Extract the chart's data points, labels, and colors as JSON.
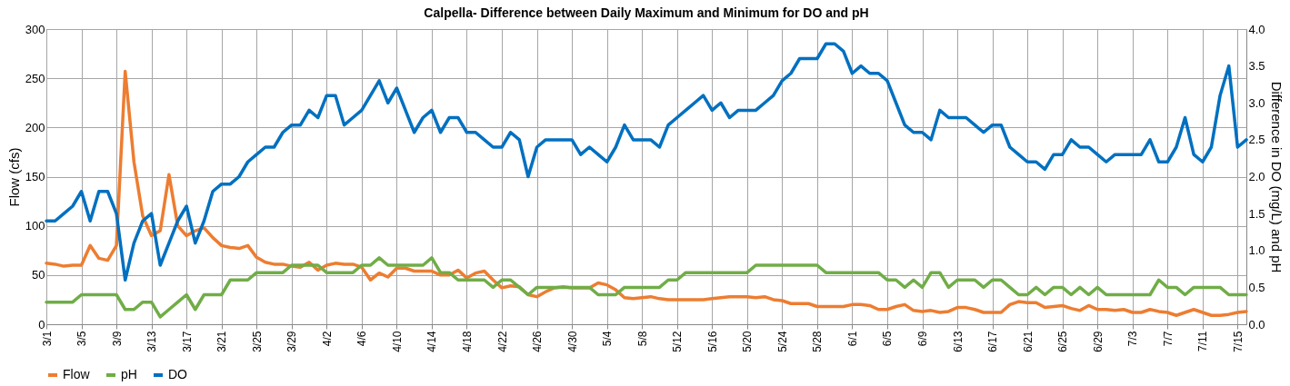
{
  "chart_data": {
    "type": "line",
    "title": "Calpella- Difference between Daily Maximum and Minimum for DO and pH",
    "ylabel": "Flow (cfs)",
    "y2label": "Difference in DO (mg/L) and pH",
    "categories": [
      "3/1",
      null,
      null,
      null,
      "3/5",
      null,
      null,
      null,
      "3/9",
      null,
      null,
      null,
      "3/13",
      null,
      null,
      null,
      "3/17",
      null,
      null,
      null,
      "3/21",
      null,
      null,
      null,
      "3/25",
      null,
      null,
      null,
      "3/29",
      null,
      null,
      null,
      "4/2",
      null,
      null,
      null,
      "4/6",
      null,
      null,
      null,
      "4/10",
      null,
      null,
      null,
      "4/14",
      null,
      null,
      null,
      "4/18",
      null,
      null,
      null,
      "4/22",
      null,
      null,
      null,
      "4/26",
      null,
      null,
      null,
      "4/30",
      null,
      null,
      null,
      "5/4",
      null,
      null,
      null,
      "5/8",
      null,
      null,
      null,
      "5/12",
      null,
      null,
      null,
      "5/16",
      null,
      null,
      null,
      "5/20",
      null,
      null,
      null,
      "5/24",
      null,
      null,
      null,
      "5/28",
      null,
      null,
      null,
      "6/1",
      null,
      null,
      null,
      "6/5",
      null,
      null,
      null,
      "6/9",
      null,
      null,
      null,
      "6/13",
      null,
      null,
      null,
      "6/17",
      null,
      null,
      null,
      "6/21",
      null,
      null,
      null,
      "6/25",
      null,
      null,
      null,
      "6/29",
      null,
      null,
      null,
      "7/3",
      null,
      null,
      null,
      "7/7",
      null,
      null,
      null,
      "7/11",
      null,
      null,
      null,
      "7/15",
      null
    ],
    "series": [
      {
        "name": "Flow",
        "color": "#ed7d31",
        "values": [
          62,
          61,
          59,
          60,
          60,
          80,
          67,
          65,
          80,
          257,
          165,
          110,
          90,
          95,
          152,
          100,
          90,
          95,
          98,
          88,
          80,
          78,
          77,
          80,
          68,
          63,
          61,
          61,
          59,
          58,
          63,
          55,
          60,
          62,
          61,
          61,
          58,
          45,
          52,
          48,
          57,
          57,
          54,
          54,
          54,
          50,
          50,
          55,
          47,
          52,
          54,
          45,
          37,
          39,
          38,
          30,
          28,
          33,
          37,
          38,
          37,
          37,
          37,
          42,
          40,
          35,
          27,
          26,
          27,
          28,
          26,
          25,
          25,
          25,
          25,
          25,
          26,
          27,
          28,
          28,
          28,
          27,
          28,
          25,
          24,
          21,
          21,
          21,
          18,
          18,
          18,
          18,
          20,
          20,
          19,
          15,
          15,
          18,
          20,
          14,
          13,
          14,
          12,
          13,
          17,
          17,
          15,
          12,
          12,
          12,
          20,
          23,
          22,
          22,
          17,
          18,
          19,
          16,
          14,
          19,
          15,
          15,
          14,
          15,
          12,
          12,
          15,
          13,
          12,
          9,
          12,
          15,
          12,
          9,
          9,
          10,
          12,
          13
        ]
      },
      {
        "name": "pH",
        "color": "#70ad47",
        "axis": "y2",
        "values": [
          0.3,
          0.3,
          0.3,
          0.3,
          0.4,
          0.4,
          0.4,
          0.4,
          0.4,
          0.2,
          0.2,
          0.3,
          0.3,
          0.1,
          0.2,
          0.3,
          0.4,
          0.2,
          0.4,
          0.4,
          0.4,
          0.6,
          0.6,
          0.6,
          0.7,
          0.7,
          0.7,
          0.7,
          0.8,
          0.8,
          0.8,
          0.8,
          0.7,
          0.7,
          0.7,
          0.7,
          0.8,
          0.8,
          0.9,
          0.8,
          0.8,
          0.8,
          0.8,
          0.8,
          0.9,
          0.7,
          0.7,
          0.6,
          0.6,
          0.6,
          0.6,
          0.5,
          0.6,
          0.6,
          0.5,
          0.4,
          0.5,
          0.5,
          0.5,
          0.5,
          0.5,
          0.5,
          0.5,
          0.4,
          0.4,
          0.4,
          0.5,
          0.5,
          0.5,
          0.5,
          0.5,
          0.6,
          0.6,
          0.7,
          0.7,
          0.7,
          0.7,
          0.7,
          0.7,
          0.7,
          0.7,
          0.8,
          0.8,
          0.8,
          0.8,
          0.8,
          0.8,
          0.8,
          0.8,
          0.7,
          0.7,
          0.7,
          0.7,
          0.7,
          0.7,
          0.7,
          0.6,
          0.6,
          0.5,
          0.6,
          0.5,
          0.7,
          0.7,
          0.5,
          0.6,
          0.6,
          0.6,
          0.5,
          0.6,
          0.6,
          0.5,
          0.4,
          0.4,
          0.5,
          0.4,
          0.5,
          0.5,
          0.4,
          0.5,
          0.4,
          0.5,
          0.4,
          0.4,
          0.4,
          0.4,
          0.4,
          0.4,
          0.6,
          0.5,
          0.5,
          0.4,
          0.5,
          0.5,
          0.5,
          0.5,
          0.4,
          0.4,
          0.4
        ]
      },
      {
        "name": "DO",
        "color": "#0070c0",
        "axis": "y2",
        "values": [
          1.4,
          1.4,
          1.5,
          1.6,
          1.8,
          1.4,
          1.8,
          1.8,
          1.5,
          0.6,
          1.1,
          1.4,
          1.5,
          0.8,
          1.1,
          1.4,
          1.6,
          1.1,
          1.4,
          1.8,
          1.9,
          1.9,
          2.0,
          2.2,
          2.3,
          2.4,
          2.4,
          2.6,
          2.7,
          2.7,
          2.9,
          2.8,
          3.1,
          3.1,
          2.7,
          2.8,
          2.9,
          3.1,
          3.3,
          3.0,
          3.2,
          2.9,
          2.6,
          2.8,
          2.9,
          2.6,
          2.8,
          2.8,
          2.6,
          2.6,
          2.5,
          2.4,
          2.4,
          2.6,
          2.5,
          2.0,
          2.4,
          2.5,
          2.5,
          2.5,
          2.5,
          2.3,
          2.4,
          2.3,
          2.2,
          2.4,
          2.7,
          2.5,
          2.5,
          2.5,
          2.4,
          2.7,
          2.8,
          2.9,
          3.0,
          3.1,
          2.9,
          3.0,
          2.8,
          2.9,
          2.9,
          2.9,
          3.0,
          3.1,
          3.3,
          3.4,
          3.6,
          3.6,
          3.6,
          3.8,
          3.8,
          3.7,
          3.4,
          3.5,
          3.4,
          3.4,
          3.3,
          3.0,
          2.7,
          2.6,
          2.6,
          2.5,
          2.9,
          2.8,
          2.8,
          2.8,
          2.7,
          2.6,
          2.7,
          2.7,
          2.4,
          2.3,
          2.2,
          2.2,
          2.1,
          2.3,
          2.3,
          2.5,
          2.4,
          2.4,
          2.3,
          2.2,
          2.3,
          2.3,
          2.3,
          2.3,
          2.5,
          2.2,
          2.2,
          2.4,
          2.8,
          2.3,
          2.2,
          2.4,
          3.1,
          3.5,
          2.4,
          2.5
        ]
      }
    ],
    "ylim": [
      0,
      300
    ],
    "yticks": [
      0,
      50,
      100,
      150,
      200,
      250,
      300
    ],
    "y2lim": [
      0,
      4.0
    ],
    "y2ticks": [
      {
        "value": 0,
        "label": "0.0"
      },
      {
        "value": 0.5,
        "label": "0.5"
      },
      {
        "value": 1,
        "label": "1.0"
      },
      {
        "value": 1.5,
        "label": "1.5"
      },
      {
        "value": 2,
        "label": "2.0"
      },
      {
        "value": 2.5,
        "label": "2.5"
      },
      {
        "value": 3,
        "label": "3.0"
      },
      {
        "value": 3.5,
        "label": "3.5"
      },
      {
        "value": 4,
        "label": "4.0"
      }
    ],
    "grid": true,
    "legend": "bottom"
  }
}
